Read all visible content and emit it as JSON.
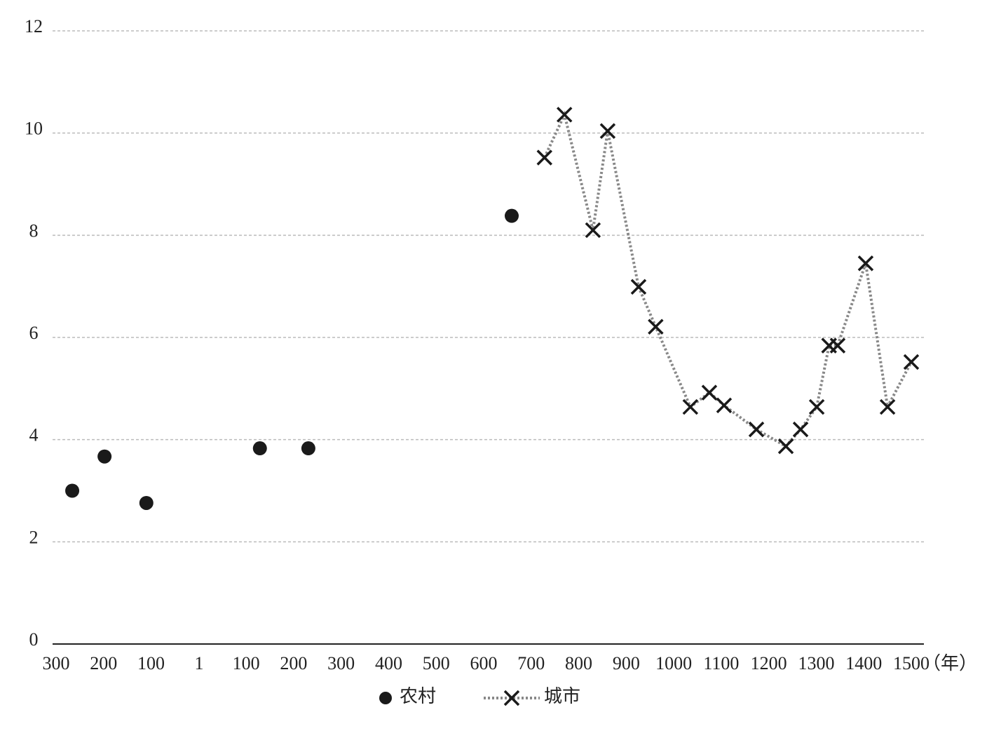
{
  "chart_data": {
    "type": "scatter-line",
    "x_unit": "（年）",
    "xlim": [
      -300,
      1500
    ],
    "ylim": [
      0,
      12
    ],
    "xticks": [
      {
        "value": -300,
        "label": "300"
      },
      {
        "value": -200,
        "label": "200"
      },
      {
        "value": -100,
        "label": "100"
      },
      1,
      100,
      200,
      300,
      400,
      500,
      600,
      700,
      800,
      900,
      1000,
      1100,
      1200,
      1300,
      1400,
      1500
    ],
    "yticks": [
      0,
      2,
      4,
      6,
      8,
      10,
      12
    ],
    "grid": true,
    "legend": "bottom",
    "series": [
      {
        "name": "农村",
        "color": "#1a1a1a",
        "marker": "circle",
        "x": [
          -266,
          -198,
          -110,
          129,
          231,
          659
        ],
        "values": [
          3.0,
          3.67,
          2.76,
          3.83,
          3.83,
          8.38
        ]
      },
      {
        "name": "城市",
        "color": "#1a1a1a",
        "line_color": "#888888",
        "marker": "x",
        "x": [
          728,
          770,
          830,
          861,
          926,
          962,
          1035,
          1075,
          1106,
          1174,
          1236,
          1267,
          1301,
          1327,
          1345,
          1404,
          1450,
          1500
        ],
        "values": [
          9.52,
          10.36,
          8.1,
          10.04,
          6.99,
          6.21,
          4.64,
          4.92,
          4.67,
          4.2,
          3.87,
          4.2,
          4.64,
          5.84,
          5.84,
          7.45,
          4.64,
          5.52
        ]
      }
    ]
  }
}
